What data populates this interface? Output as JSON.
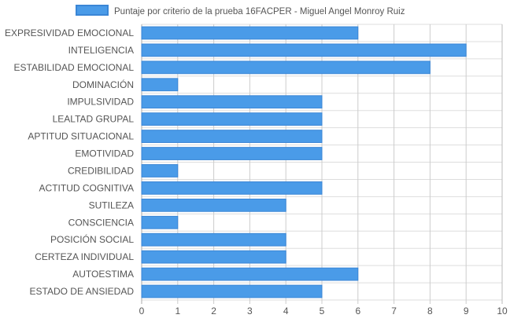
{
  "chart_data": {
    "type": "bar",
    "orientation": "horizontal",
    "categories": [
      "EXPRESIVIDAD EMOCIONAL",
      "INTELIGENCIA",
      "ESTABILIDAD EMOCIONAL",
      "DOMINACIÓN",
      "IMPULSIVIDAD",
      "LEALTAD GRUPAL",
      "APTITUD SITUACIONAL",
      "EMOTIVIDAD",
      "CREDIBILIDAD",
      "ACTITUD COGNITIVA",
      "SUTILEZA",
      "CONSCIENCIA",
      "POSICIÓN SOCIAL",
      "CERTEZA INDIVIDUAL",
      "AUTOESTIMA",
      "ESTADO DE ANSIEDAD"
    ],
    "series": [
      {
        "name": "Puntaje por criterio de la prueba 16FACPER - Miguel Angel Monroy Ruiz",
        "values": [
          6,
          9,
          8,
          1,
          5,
          5,
          5,
          5,
          1,
          5,
          4,
          1,
          4,
          4,
          6,
          5
        ]
      }
    ],
    "xlim": [
      0,
      10
    ],
    "xticks": [
      "0",
      "1",
      "2",
      "3",
      "4",
      "5",
      "6",
      "7",
      "8",
      "9",
      "10"
    ],
    "grid": true,
    "legend_position": "top-center",
    "colors": {
      "bar_fill": "#4a9be8",
      "bar_stroke": "#3a86d6",
      "grid": "#dddddd",
      "text": "#555555"
    }
  }
}
